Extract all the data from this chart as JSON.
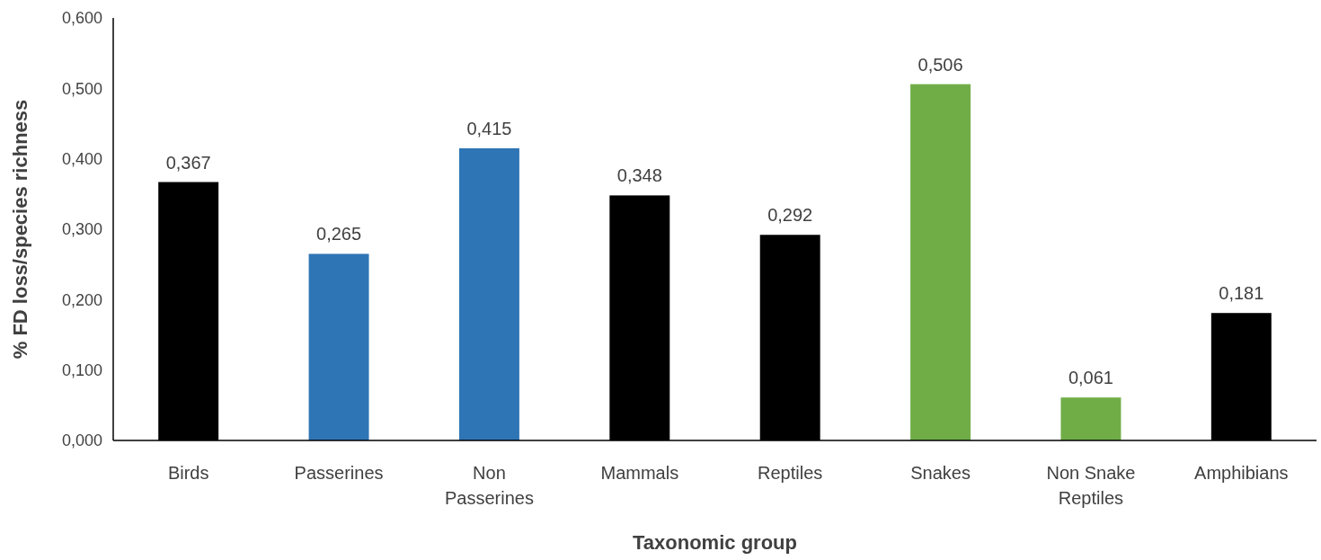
{
  "chart_data": {
    "type": "bar",
    "xlabel": "Taxonomic group",
    "ylabel": "% FD loss/species richness",
    "categories": [
      "Birds",
      "Passerines",
      "Non Passerines",
      "Mammals",
      "Reptiles",
      "Snakes",
      "Non Snake Reptiles",
      "Amphibians"
    ],
    "values": [
      0.367,
      0.265,
      0.415,
      0.348,
      0.292,
      0.506,
      0.061,
      0.181
    ],
    "colors": [
      "#000000",
      "#2e75b6",
      "#2e75b6",
      "#000000",
      "#000000",
      "#70ad47",
      "#70ad47",
      "#000000"
    ],
    "value_labels": [
      "0,367",
      "0,265",
      "0,415",
      "0,348",
      "0,292",
      "0,506",
      "0,061",
      "0,181"
    ],
    "ylim": [
      0,
      0.6
    ],
    "yticks": [
      {
        "value": 0,
        "label": "0,000"
      },
      {
        "value": 0.1,
        "label": "0,100"
      },
      {
        "value": 0.2,
        "label": "0,200"
      },
      {
        "value": 0.3,
        "label": "0,300"
      },
      {
        "value": 0.4,
        "label": "0,400"
      },
      {
        "value": 0.5,
        "label": "0,500"
      },
      {
        "value": 0.6,
        "label": "0,600"
      }
    ],
    "grid": false
  }
}
